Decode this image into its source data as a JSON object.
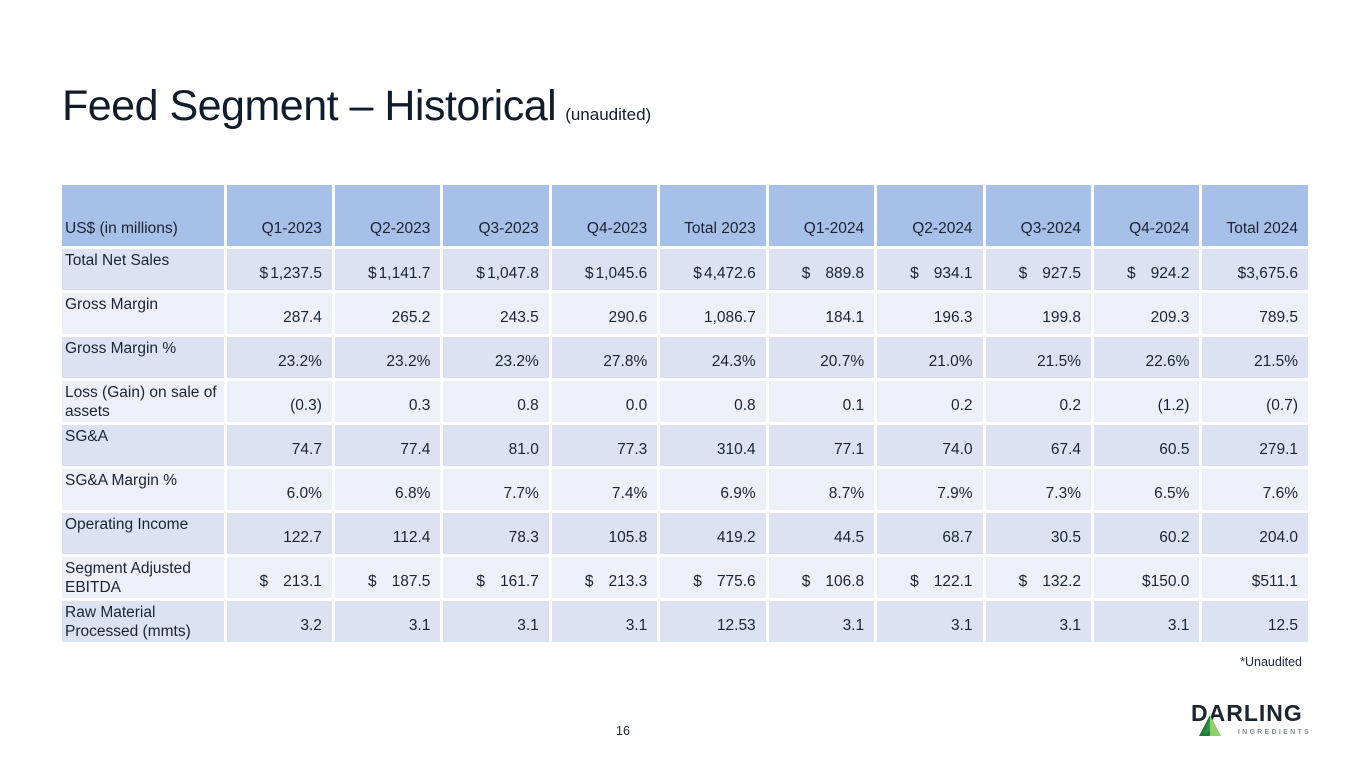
{
  "slide": {
    "title": "Feed Segment – Historical",
    "subtitle": "(unaudited)",
    "footnote": "*Unaudited",
    "page_number": "16"
  },
  "logo": {
    "brand": "DARLING",
    "tagline": "INGREDIENTS"
  },
  "colors": {
    "header_bg": "#a6c0e8",
    "row_stripe_dark": "#dde2f3",
    "row_stripe_light": "#edf0f9",
    "text": "#1a2433",
    "title_text": "#101c2c",
    "logo_green_dark": "#1c7c38",
    "logo_green_light": "#8fd06a",
    "tagline_gray": "#8b9199"
  },
  "table": {
    "unit_label": "US$ (in millions)",
    "columns": [
      "Q1-2023",
      "Q2-2023",
      "Q3-2023",
      "Q4-2023",
      "Total 2023",
      "Q1-2024",
      "Q2-2024",
      "Q3-2024",
      "Q4-2024",
      "Total 2024"
    ],
    "rows": [
      {
        "label": "Total Net Sales",
        "cells": [
          {
            "p": "$",
            "v": "1,237.5"
          },
          {
            "p": "$",
            "v": "1,141.7"
          },
          {
            "p": "$",
            "v": "1,047.8"
          },
          {
            "p": "$",
            "v": "1,045.6"
          },
          {
            "p": "$",
            "v": "4,472.6"
          },
          {
            "p": "$",
            "v": "889.8"
          },
          {
            "p": "$",
            "v": "934.1"
          },
          {
            "p": "$",
            "v": "927.5"
          },
          {
            "p": "$",
            "v": "924.2"
          },
          {
            "v": "$3,675.6"
          }
        ]
      },
      {
        "label": "Gross Margin",
        "cells": [
          {
            "v": "287.4"
          },
          {
            "v": "265.2"
          },
          {
            "v": "243.5"
          },
          {
            "v": "290.6"
          },
          {
            "v": "1,086.7"
          },
          {
            "v": "184.1"
          },
          {
            "v": "196.3"
          },
          {
            "v": "199.8"
          },
          {
            "v": "209.3"
          },
          {
            "v": "789.5"
          }
        ]
      },
      {
        "label": "Gross Margin %",
        "cells": [
          {
            "v": "23.2%"
          },
          {
            "v": "23.2%"
          },
          {
            "v": "23.2%"
          },
          {
            "v": "27.8%"
          },
          {
            "v": "24.3%"
          },
          {
            "v": "20.7%"
          },
          {
            "v": "21.0%"
          },
          {
            "v": "21.5%"
          },
          {
            "v": "22.6%"
          },
          {
            "v": "21.5%"
          }
        ]
      },
      {
        "label": "Loss (Gain) on sale of assets",
        "cells": [
          {
            "v": "(0.3)"
          },
          {
            "v": "0.3"
          },
          {
            "v": "0.8"
          },
          {
            "v": "0.0"
          },
          {
            "v": "0.8"
          },
          {
            "v": "0.1"
          },
          {
            "v": "0.2"
          },
          {
            "v": "0.2"
          },
          {
            "v": "(1.2)"
          },
          {
            "v": "(0.7)"
          }
        ]
      },
      {
        "label": "SG&A",
        "cells": [
          {
            "v": "74.7"
          },
          {
            "v": "77.4"
          },
          {
            "v": "81.0"
          },
          {
            "v": "77.3"
          },
          {
            "v": "310.4"
          },
          {
            "v": "77.1"
          },
          {
            "v": "74.0"
          },
          {
            "v": "67.4"
          },
          {
            "v": "60.5"
          },
          {
            "v": "279.1"
          }
        ]
      },
      {
        "label": "SG&A Margin %",
        "cells": [
          {
            "v": "6.0%"
          },
          {
            "v": "6.8%"
          },
          {
            "v": "7.7%"
          },
          {
            "v": "7.4%"
          },
          {
            "v": "6.9%"
          },
          {
            "v": "8.7%"
          },
          {
            "v": "7.9%"
          },
          {
            "v": "7.3%"
          },
          {
            "v": "6.5%"
          },
          {
            "v": "7.6%"
          }
        ]
      },
      {
        "label": "Operating Income",
        "cells": [
          {
            "v": "122.7"
          },
          {
            "v": "112.4"
          },
          {
            "v": "78.3"
          },
          {
            "v": "105.8"
          },
          {
            "v": "419.2"
          },
          {
            "v": "44.5"
          },
          {
            "v": "68.7"
          },
          {
            "v": "30.5"
          },
          {
            "v": "60.2"
          },
          {
            "v": "204.0"
          }
        ]
      },
      {
        "label": "Segment Adjusted EBITDA",
        "cells": [
          {
            "p": "$",
            "v": "213.1"
          },
          {
            "p": "$",
            "v": "187.5"
          },
          {
            "p": "$",
            "v": "161.7"
          },
          {
            "p": "$",
            "v": "213.3"
          },
          {
            "p": "$",
            "v": "775.6"
          },
          {
            "p": "$",
            "v": "106.8"
          },
          {
            "p": "$",
            "v": "122.1"
          },
          {
            "p": "$",
            "v": "132.2"
          },
          {
            "v": "$150.0"
          },
          {
            "v": "$511.1"
          }
        ]
      },
      {
        "label": "Raw Material Processed (mmts)",
        "cells": [
          {
            "v": "3.2"
          },
          {
            "v": "3.1"
          },
          {
            "v": "3.1"
          },
          {
            "v": "3.1"
          },
          {
            "v": "12.53"
          },
          {
            "v": "3.1"
          },
          {
            "v": "3.1"
          },
          {
            "v": "3.1"
          },
          {
            "v": "3.1"
          },
          {
            "v": "12.5"
          }
        ]
      }
    ]
  }
}
